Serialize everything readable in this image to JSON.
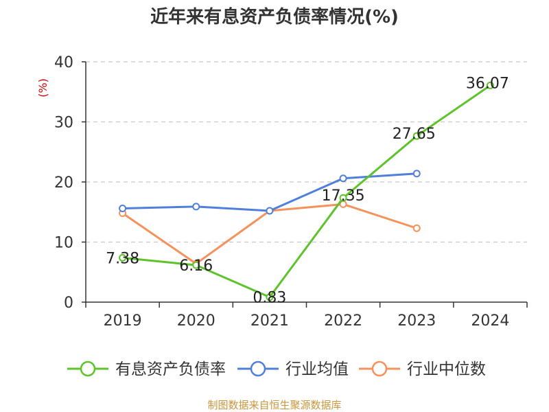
{
  "title": "近年来有息资产负债率情况(%)",
  "source": "制图数据来自恒生聚源数据库",
  "chart_data": {
    "type": "line",
    "title": "近年来有息资产负债率情况(%)",
    "ylabel": "(%)",
    "xlabel": "",
    "categories": [
      "2019",
      "2020",
      "2021",
      "2022",
      "2023",
      "2024"
    ],
    "ylim": [
      0,
      40
    ],
    "yticks": [
      0,
      10,
      20,
      30,
      40
    ],
    "grid": true,
    "legend_position": "bottom",
    "series": [
      {
        "name": "有息资产负债率",
        "color": "#5ec22b",
        "values": [
          7.38,
          6.16,
          0.83,
          17.35,
          27.65,
          36.07
        ],
        "labels": [
          "7.38",
          "6.16",
          "0.83",
          "17.35",
          "27.65",
          "36.07"
        ]
      },
      {
        "name": "行业均值",
        "color": "#4f7fdb",
        "values": [
          15.6,
          15.9,
          15.2,
          20.6,
          21.4,
          null
        ]
      },
      {
        "name": "行业中位数",
        "color": "#f5915b",
        "values": [
          14.8,
          6.4,
          15.2,
          16.3,
          12.3,
          null
        ]
      }
    ]
  }
}
